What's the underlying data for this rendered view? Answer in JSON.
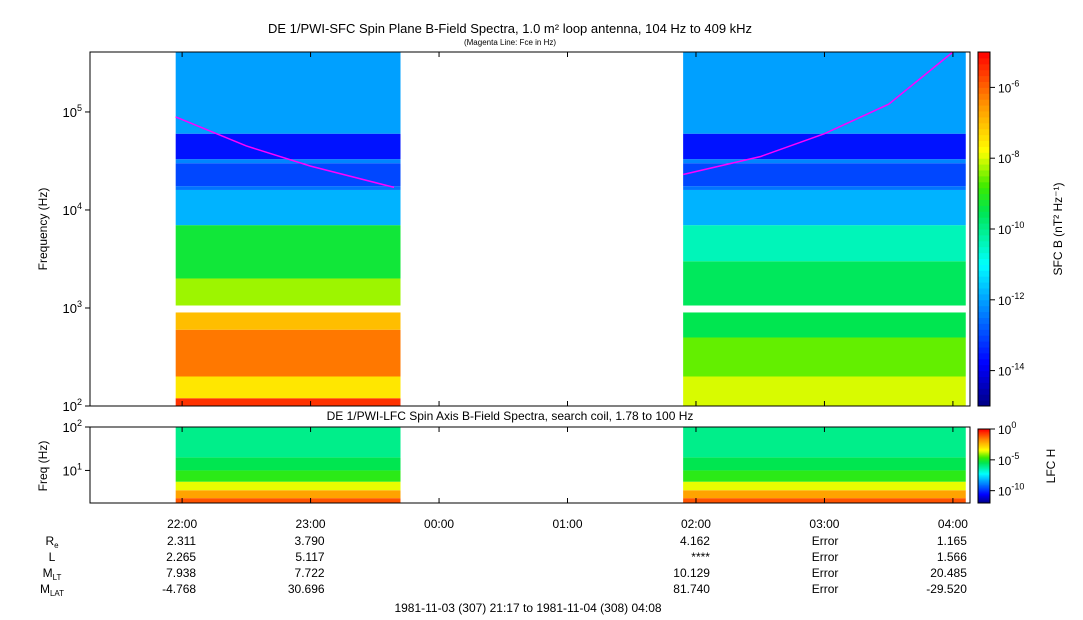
{
  "chart_data": [
    {
      "type": "heatmap",
      "title": "DE 1/PWI-SFC  Spin Plane B-Field Spectra, 1.0 m² loop antenna, 104 Hz to 409 kHz",
      "subtitle": "(Magenta Line: Fce in Hz)",
      "ylabel": "Frequency (Hz)",
      "yscale": "log",
      "ylim": [
        100,
        409000
      ],
      "yticks": [
        {
          "v": 100,
          "label": "10",
          "exp": "2"
        },
        {
          "v": 1000,
          "label": "10",
          "exp": "3"
        },
        {
          "v": 10000,
          "label": "10",
          "exp": "4"
        },
        {
          "v": 100000,
          "label": "10",
          "exp": "5"
        }
      ],
      "colorbar": {
        "label_full": "SFC B (nT² Hz⁻¹)",
        "range_log": [
          -15,
          -5
        ],
        "ticks": [
          {
            "label": "10",
            "exp": "-6",
            "v": -6
          },
          {
            "label": "10",
            "exp": "-8",
            "v": -8
          },
          {
            "label": "10",
            "exp": "-10",
            "v": -10
          },
          {
            "label": "10",
            "exp": "-12",
            "v": -12
          },
          {
            "label": "10",
            "exp": "-14",
            "v": -14
          }
        ]
      },
      "segments": [
        {
          "t0": 21.95,
          "t1": 23.7,
          "bands": [
            {
              "f0": 100,
              "f1": 120,
              "v": -5.5
            },
            {
              "f0": 120,
              "f1": 200,
              "v": -7.5
            },
            {
              "f0": 200,
              "f1": 600,
              "v": -6.2
            },
            {
              "f0": 600,
              "f1": 900,
              "v": -7
            },
            {
              "f0": 1060,
              "f1": 2000,
              "v": -8.3
            },
            {
              "f0": 2000,
              "f1": 7000,
              "v": -9.3
            },
            {
              "f0": 7000,
              "f1": 16000,
              "v": -11.8
            },
            {
              "f0": 16000,
              "f1": 17500,
              "v": -12.5
            },
            {
              "f0": 17500,
              "f1": 30000,
              "v": -13
            },
            {
              "f0": 30000,
              "f1": 33000,
              "v": -12.3
            },
            {
              "f0": 33000,
              "f1": 60000,
              "v": -13.6
            },
            {
              "f0": 60000,
              "f1": 409000,
              "v": -12
            }
          ]
        },
        {
          "t0": 25.9,
          "t1": 28.1,
          "bands": [
            {
              "f0": 100,
              "f1": 200,
              "v": -8
            },
            {
              "f0": 200,
              "f1": 500,
              "v": -8.6
            },
            {
              "f0": 500,
              "f1": 900,
              "v": -9.5
            },
            {
              "f0": 1060,
              "f1": 3000,
              "v": -9.6
            },
            {
              "f0": 3000,
              "f1": 7000,
              "v": -10.4
            },
            {
              "f0": 7000,
              "f1": 16000,
              "v": -11.8
            },
            {
              "f0": 16000,
              "f1": 17500,
              "v": -12.5
            },
            {
              "f0": 17500,
              "f1": 30000,
              "v": -13
            },
            {
              "f0": 30000,
              "f1": 33000,
              "v": -12.3
            },
            {
              "f0": 33000,
              "f1": 60000,
              "v": -13.6
            },
            {
              "f0": 60000,
              "f1": 409000,
              "v": -12
            }
          ]
        }
      ],
      "fce_line": [
        {
          "t": 21.95,
          "f": 89000
        },
        {
          "t": 22.5,
          "f": 45000
        },
        {
          "t": 23.0,
          "f": 28000
        },
        {
          "t": 23.65,
          "f": 17000
        },
        {
          "t": 25.9,
          "f": 23000
        },
        {
          "t": 26.5,
          "f": 35000
        },
        {
          "t": 27.0,
          "f": 60000
        },
        {
          "t": 27.5,
          "f": 120000
        },
        {
          "t": 28.0,
          "f": 415000
        }
      ]
    },
    {
      "type": "heatmap",
      "title": "DE 1/PWI-LFC  Spin Axis B-Field Spectra, search coil, 1.78 to 100 Hz",
      "ylabel": "Freq (Hz)",
      "yscale": "log",
      "ylim": [
        1.78,
        100
      ],
      "yticks": [
        {
          "v": 100,
          "label": "10",
          "exp": "2"
        },
        {
          "v": 10,
          "label": "10",
          "exp": "1"
        }
      ],
      "colorbar": {
        "label": "LFC H",
        "range_log": [
          -12,
          0
        ],
        "ticks": [
          {
            "label": "10",
            "exp": "0",
            "v": 0
          },
          {
            "label": "10",
            "exp": "-5",
            "v": -5
          },
          {
            "label": "10",
            "exp": "-10",
            "v": -10
          }
        ]
      },
      "segments": [
        {
          "t0": 21.95,
          "t1": 23.7,
          "bands": [
            {
              "f0": 1.78,
              "f1": 2.3,
              "v": -1
            },
            {
              "f0": 2.3,
              "f1": 3.5,
              "v": -2
            },
            {
              "f0": 3.5,
              "f1": 5.5,
              "v": -3.5
            },
            {
              "f0": 5.5,
              "f1": 10,
              "v": -4.8
            },
            {
              "f0": 10,
              "f1": 20,
              "v": -5.4
            },
            {
              "f0": 20,
              "f1": 100,
              "v": -6
            }
          ]
        },
        {
          "t0": 25.9,
          "t1": 28.1,
          "bands": [
            {
              "f0": 1.78,
              "f1": 2.3,
              "v": -1
            },
            {
              "f0": 2.3,
              "f1": 3.5,
              "v": -2
            },
            {
              "f0": 3.5,
              "f1": 5.5,
              "v": -3.5
            },
            {
              "f0": 5.5,
              "f1": 10,
              "v": -4.8
            },
            {
              "f0": 10,
              "f1": 20,
              "v": -5.4
            },
            {
              "f0": 20,
              "f1": 100,
              "v": -6
            }
          ]
        }
      ]
    }
  ],
  "time_axis": {
    "start": 21.283,
    "end": 28.133,
    "ticks": [
      {
        "t": 22,
        "label": "22:00"
      },
      {
        "t": 23,
        "label": "23:00"
      },
      {
        "t": 24,
        "label": "00:00"
      },
      {
        "t": 25,
        "label": "01:00"
      },
      {
        "t": 26,
        "label": "02:00"
      },
      {
        "t": 27,
        "label": "03:00"
      },
      {
        "t": 28,
        "label": "04:00"
      }
    ]
  },
  "ephemeris": {
    "rows": [
      {
        "label": "R",
        "sub": "e",
        "values": [
          "2.311",
          "3.790",
          "",
          "",
          "4.162",
          "Error",
          "1.165"
        ]
      },
      {
        "label": "L",
        "sub": "",
        "values": [
          "2.265",
          "5.117",
          "",
          "",
          "****",
          "Error",
          "1.566"
        ]
      },
      {
        "label": "M",
        "sub": "LT",
        "values": [
          "7.938",
          "7.722",
          "",
          "",
          "10.129",
          "Error",
          "20.485"
        ]
      },
      {
        "label": "M",
        "sub": "LAT",
        "values": [
          "-4.768",
          "30.696",
          "",
          "",
          "81.740",
          "Error",
          "-29.520"
        ]
      }
    ]
  },
  "date_range": "1981-11-03 (307) 21:17 to 1981-11-04 (308) 04:08",
  "colors": {
    "fce": "#ff00ff"
  }
}
